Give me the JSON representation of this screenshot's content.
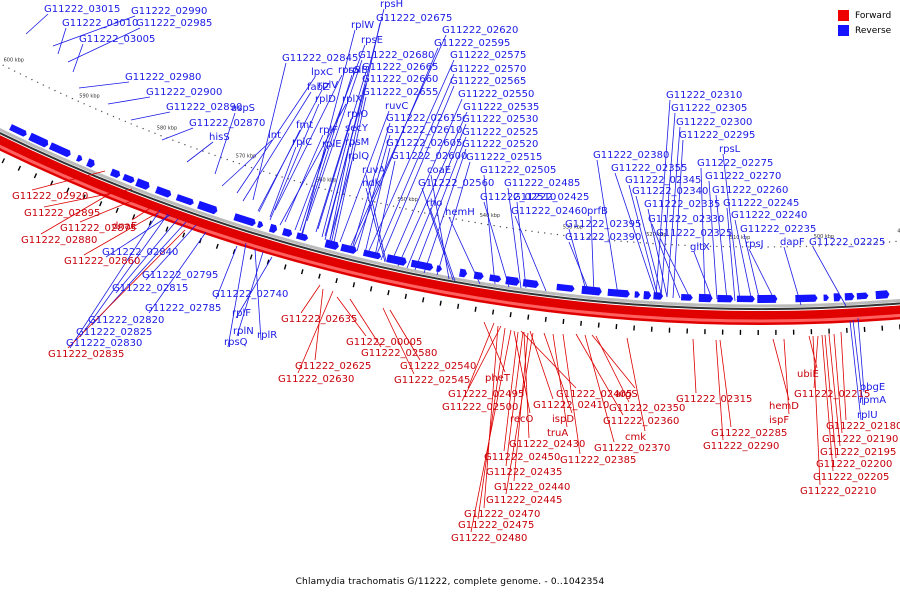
{
  "caption": "Chlamydia trachomatis G/11222, complete genome. - 0..1042354",
  "legend": [
    {
      "label": "Forward",
      "color": "#ee0000"
    },
    {
      "label": "Reverse",
      "color": "#1414ff"
    }
  ],
  "colors": {
    "forward": "#ee0000",
    "reverse": "#1414ff",
    "forward_text": "#c8000a",
    "reverse_text": "#1a1ae6"
  },
  "kbp_ticks": [
    "650 kbp",
    "640 kbp",
    "630 kbp",
    "620 kbp",
    "610 kbp",
    "600 kbp",
    "590 kbp",
    "580 kbp",
    "570 kbp",
    "560 kbp",
    "550 kbp",
    "540 kbp",
    "530 kbp",
    "520 kbp",
    "510 kbp",
    "500 kbp",
    "490 kbp"
  ],
  "reverse_labels": [
    "G11222_03015",
    "G11222_02990",
    "G11222_03010",
    "G11222_02985",
    "G11222_03005",
    "G11222_02980",
    "G11222_02900",
    "G11222_02890",
    "G11222_02870",
    "hisS",
    "aspS",
    "lnt",
    "lpxC",
    "fabZ",
    "rpsS",
    "rplV",
    "rplD",
    "rplX",
    "rplB",
    "rplW",
    "rpsE",
    "rpsH",
    "G11222_02675",
    "G11222_02620",
    "G11222_02595",
    "G11222_02845",
    "G11222_02680",
    "G11222_02575",
    "G11222_02665",
    "G11222_02570",
    "G11222_02660",
    "G11222_02565",
    "G11222_02655",
    "G11222_02550",
    "ruvC",
    "G11222_02535",
    "rplO",
    "G11222_02615",
    "G11222_02530",
    "fmt",
    "secY",
    "G11222_02610",
    "G11222_02525",
    "rplF",
    "rpsM",
    "G11222_02605",
    "G11222_02520",
    "rplC",
    "rplE",
    "G11222_02600",
    "G11222_02515",
    "rplQ",
    "ruvA",
    "coaE",
    "G11222_02505",
    "ndk",
    "G11222_02560",
    "G11222_02485",
    "rho",
    "G11222_02510",
    "G11222_02425",
    "hemH",
    "G11222_02460",
    "prfB",
    "G11222_02395",
    "G11222_02390",
    "G11222_02380",
    "G11222_02355",
    "G11222_02345",
    "G11222_02340",
    "G11222_02335",
    "G11222_02330",
    "G11222_02325",
    "gltX",
    "G11222_02310",
    "G11222_02305",
    "G11222_02300",
    "G11222_02295",
    "rpsL",
    "G11222_02275",
    "G11222_02270",
    "G11222_02260",
    "G11222_02245",
    "G11222_02240",
    "G11222_02235",
    "rpsJ",
    "dapF",
    "G11222_02225",
    "G11222_02840",
    "G11222_02795",
    "G11222_02815",
    "G11222_02785",
    "G11222_02820",
    "G11222_02825",
    "G11222_02830",
    "G11222_02740",
    "rplF",
    "rplN",
    "rplR",
    "rpsQ",
    "obgE",
    "rpmA",
    "rplU"
  ],
  "forward_labels": [
    "G11222_02920",
    "G11222_02895",
    "G11222_02875",
    "dnaE",
    "G11222_02880",
    "G11222_02860",
    "G11222_02835",
    "G11222_02635",
    "G11222_00005",
    "G11222_02580",
    "G11222_02625",
    "G11222_02630",
    "G11222_02540",
    "G11222_02545",
    "pheT",
    "G11222_02495",
    "G11222_02405",
    "G11222_02500",
    "G11222_02410",
    "argS",
    "G11222_02350",
    "recO",
    "ispD",
    "G11222_02360",
    "truA",
    "cmk",
    "G11222_02430",
    "G11222_02370",
    "G11222_02450",
    "G11222_02385",
    "G11222_02435",
    "G11222_02440",
    "G11222_02445",
    "G11222_02470",
    "G11222_02475",
    "G11222_02480",
    "G11222_02315",
    "hemD",
    "G11222_02285",
    "ispF",
    "G11222_02290",
    "ubiE",
    "G11222_02215",
    "G11222_02180",
    "G11222_02190",
    "G11222_02195",
    "G11222_02200",
    "G11222_02205",
    "G11222_02210"
  ]
}
